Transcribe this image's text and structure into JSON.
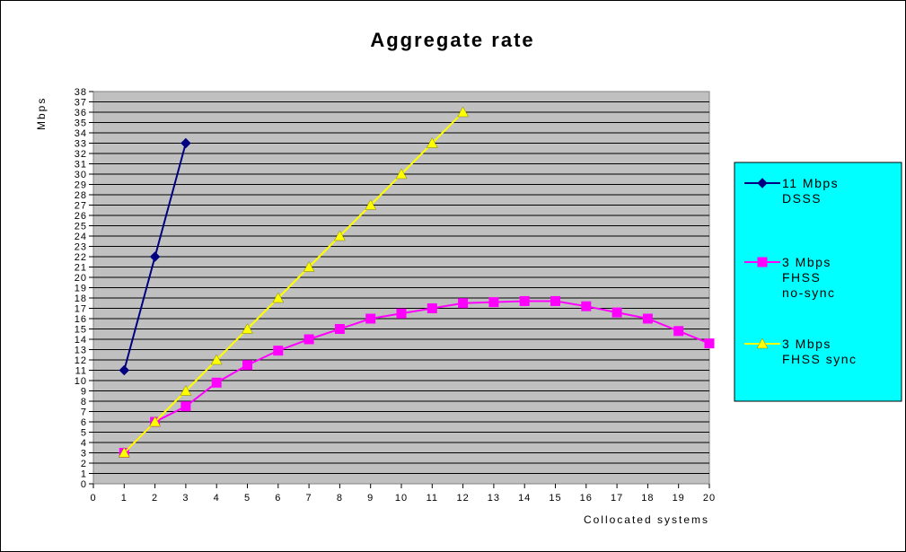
{
  "chart_data": {
    "type": "line",
    "title": "Aggregate rate",
    "xlabel": "Collocated systems",
    "ylabel": "Mbps",
    "xlim": [
      0,
      20
    ],
    "ylim": [
      0,
      38
    ],
    "x_ticks": [
      "0",
      "1",
      "2",
      "3",
      "4",
      "5",
      "6",
      "7",
      "8",
      "9",
      "10",
      "11",
      "12",
      "13",
      "14",
      "15",
      "16",
      "17",
      "18",
      "19",
      "20"
    ],
    "y_ticks": [
      "0",
      "1",
      "2",
      "3",
      "4",
      "5",
      "6",
      "7",
      "8",
      "9",
      "10",
      "11",
      "12",
      "13",
      "14",
      "15",
      "16",
      "17",
      "18",
      "19",
      "20",
      "21",
      "22",
      "23",
      "24",
      "25",
      "26",
      "27",
      "28",
      "29",
      "30",
      "31",
      "32",
      "33",
      "34",
      "35",
      "36",
      "37",
      "38"
    ],
    "grid": true,
    "legend_position": "right",
    "plot_background": "#c0c0c0",
    "series": [
      {
        "name_lines": [
          "11 Mbps",
          "DSSS"
        ],
        "color": "#000080",
        "marker": "diamond",
        "x": [
          1,
          2,
          3
        ],
        "y": [
          11,
          22,
          33
        ]
      },
      {
        "name_lines": [
          "3 Mbps",
          "FHSS",
          "no-sync"
        ],
        "color": "#ff00ff",
        "marker": "square",
        "x": [
          1,
          2,
          3,
          4,
          5,
          6,
          7,
          8,
          9,
          10,
          11,
          12,
          13,
          14,
          15,
          16,
          17,
          18,
          19,
          20
        ],
        "y": [
          3,
          6,
          7.5,
          9.8,
          11.5,
          12.9,
          14,
          15,
          16,
          16.5,
          17,
          17.5,
          17.6,
          17.7,
          17.7,
          17.2,
          16.6,
          16,
          14.8,
          13.6
        ]
      },
      {
        "name_lines": [
          "3 Mbps",
          "FHSS sync"
        ],
        "color": "#ffff00",
        "marker": "triangle",
        "x": [
          1,
          2,
          3,
          4,
          5,
          6,
          7,
          8,
          9,
          10,
          11,
          12
        ],
        "y": [
          3,
          6,
          9,
          12,
          15,
          18,
          21,
          24,
          27,
          30,
          33,
          36
        ]
      }
    ]
  },
  "legend": {
    "background": "#00ffff"
  }
}
